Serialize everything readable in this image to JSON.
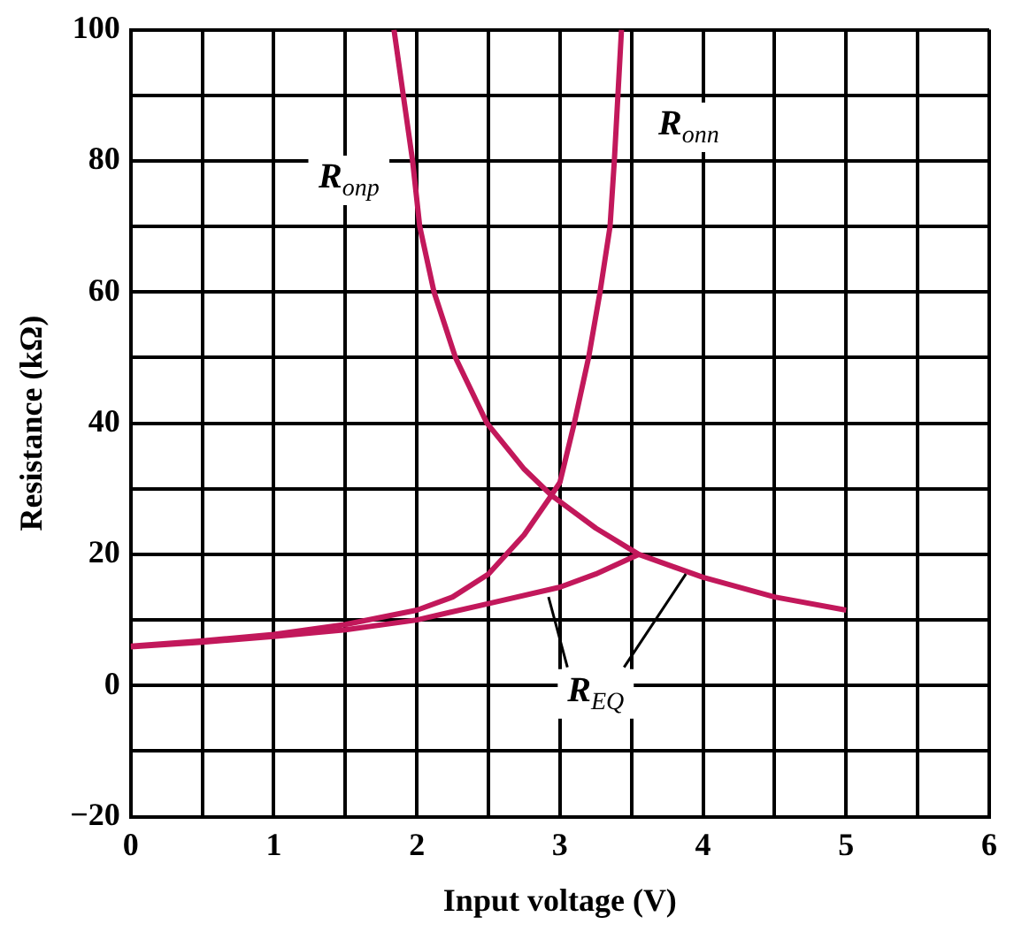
{
  "chart_data": {
    "type": "line",
    "xlabel": "Input voltage (V)",
    "ylabel": "Resistance (kΩ)",
    "xlim": [
      0,
      6
    ],
    "ylim": [
      -20,
      100
    ],
    "xticks": [
      0,
      {
        "value": 0.5,
        "label": null
      },
      1,
      {
        "value": 1.5,
        "label": null
      },
      2,
      {
        "value": 2.5,
        "label": null
      },
      3,
      {
        "value": 3.5,
        "label": null
      },
      4,
      {
        "value": 4.5,
        "label": null
      },
      5,
      {
        "value": 5.5,
        "label": null
      },
      6
    ],
    "yticks": [
      -20,
      {
        "value": -10,
        "label": null
      },
      0,
      {
        "value": 10,
        "label": null
      },
      20,
      {
        "value": 30,
        "label": null
      },
      40,
      {
        "value": 50,
        "label": null
      },
      60,
      {
        "value": 70,
        "label": null
      },
      80,
      {
        "value": 90,
        "label": null
      },
      100
    ],
    "grid": true,
    "marker": "none",
    "line_style": "solid",
    "series": [
      {
        "color": "#c2185b",
        "x": [
          0,
          0.5,
          1,
          1.5,
          2,
          2.25,
          2.5,
          2.75,
          2.94,
          3.0,
          3.1,
          3.2,
          3.28,
          3.35,
          3.38,
          3.43
        ],
        "values": [
          6,
          6.8,
          7.8,
          9.3,
          11.5,
          13.5,
          17,
          23,
          29,
          31,
          40,
          50,
          60,
          70,
          80,
          100
        ]
      },
      {
        "color": "#c2185b",
        "x": [
          1.84,
          1.97,
          2.02,
          2.12,
          2.27,
          2.49,
          2.75,
          2.94,
          3.25,
          3.55,
          4,
          4.5,
          5
        ],
        "values": [
          100,
          80,
          70,
          60,
          50,
          40,
          33,
          29,
          24,
          20,
          16.5,
          13.5,
          11.5
        ]
      },
      {
        "color": "#c2185b",
        "x": [
          0,
          0.5,
          1,
          1.5,
          2,
          2.5,
          3,
          3.25,
          3.55
        ],
        "values": [
          5.9,
          6.6,
          7.5,
          8.5,
          10,
          12.5,
          15,
          17,
          20
        ]
      }
    ],
    "annotations": [
      "R$_{onn}$",
      "R$_{onp}$",
      {
        "text": "R$_{EQ}$",
        "x": 3.25,
        "y": -1
      }
    ]
  }
}
